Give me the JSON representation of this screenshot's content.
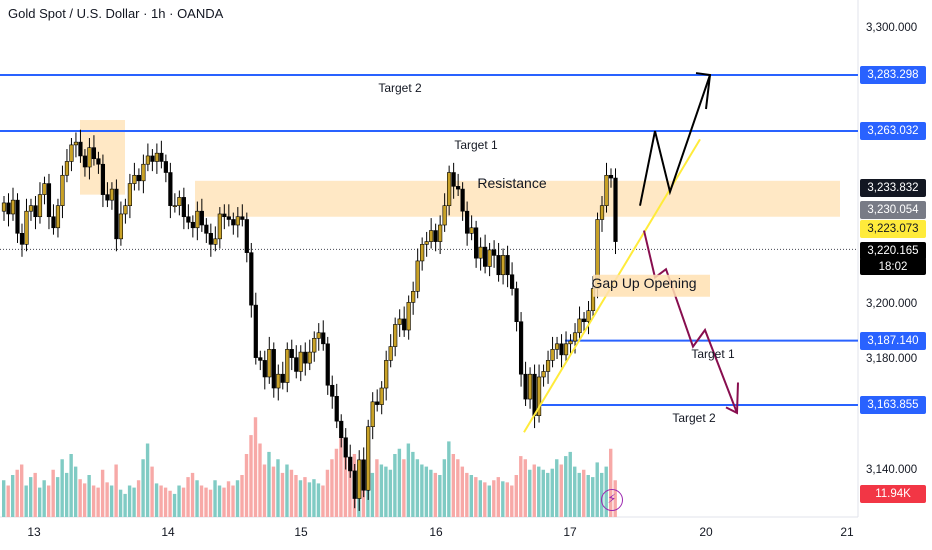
{
  "header": {
    "title": "Gold Spot / U.S. Dollar · 1h · OANDA"
  },
  "colors": {
    "bull": "#089981",
    "bear": "#f23645",
    "bull_vol": "#80cbc4",
    "bear_vol": "#f7a9a7",
    "level_line": "#2962ff",
    "resistance_zone": "#ffe0b2",
    "trend": "#ffeb3b",
    "up_path": "#000000",
    "down_path": "#880e4f"
  },
  "chart_data": {
    "type": "candlestick",
    "title": "Gold Spot / U.S. Dollar · 1h · OANDA",
    "x_ticks": [
      "13",
      "14",
      "15",
      "16",
      "17",
      "20",
      "21"
    ],
    "y_ticks": [
      "3,300.000",
      "3,200.000",
      "3,180.000",
      "3,140.000"
    ],
    "ylim": [
      3128,
      3307
    ],
    "close_series": [
      3237,
      3233,
      3238,
      3226,
      3222,
      3234,
      3236,
      3232,
      3240,
      3244,
      3232,
      3228,
      3236,
      3247,
      3252,
      3258,
      3259,
      3254,
      3250,
      3257,
      3253,
      3251,
      3240,
      3238,
      3242,
      3224,
      3233,
      3236,
      3244,
      3247,
      3245,
      3251,
      3254,
      3252,
      3255,
      3252,
      3248,
      3236,
      3236,
      3239,
      3232,
      3230,
      3228,
      3234,
      3229,
      3226,
      3222,
      3224,
      3233,
      3232,
      3231,
      3229,
      3232,
      3231,
      3219,
      3200,
      3181,
      3180,
      3174,
      3184,
      3170,
      3175,
      3172,
      3184,
      3181,
      3176,
      3183,
      3179,
      3183,
      3188,
      3190,
      3186,
      3171,
      3167,
      3158,
      3152,
      3145,
      3140,
      3130,
      3144,
      3133,
      3156,
      3165,
      3164,
      3170,
      3180,
      3185,
      3193,
      3195,
      3191,
      3201,
      3205,
      3216,
      3222,
      3223,
      3227,
      3223,
      3229,
      3236,
      3248,
      3243,
      3242,
      3234,
      3226,
      3228,
      3217,
      3221,
      3214,
      3220,
      3218,
      3211,
      3218,
      3211,
      3206,
      3194,
      3175,
      3166,
      3175,
      3160,
      3174,
      3176,
      3180,
      3184,
      3186,
      3182,
      3186,
      3187,
      3190,
      3195,
      3194,
      3198,
      3206,
      3231,
      3236,
      3247,
      3246,
      3223
    ],
    "volume_level_fractions": [
      0.35,
      0.3,
      0.4,
      0.45,
      0.5,
      0.3,
      0.38,
      0.42,
      0.28,
      0.35,
      0.3,
      0.45,
      0.38,
      0.55,
      0.42,
      0.6,
      0.48,
      0.36,
      0.32,
      0.4,
      0.3,
      0.28,
      0.45,
      0.33,
      0.3,
      0.5,
      0.26,
      0.22,
      0.3,
      0.28,
      0.35,
      0.55,
      0.7,
      0.48,
      0.32,
      0.3,
      0.28,
      0.25,
      0.22,
      0.3,
      0.28,
      0.38,
      0.42,
      0.35,
      0.3,
      0.28,
      0.26,
      0.35,
      0.3,
      0.28,
      0.34,
      0.3,
      0.35,
      0.4,
      0.6,
      0.78,
      0.95,
      0.7,
      0.5,
      0.62,
      0.48,
      0.55,
      0.42,
      0.5,
      0.45,
      0.4,
      0.35,
      0.38,
      0.33,
      0.36,
      0.32,
      0.3,
      0.45,
      0.55,
      0.65,
      0.75,
      0.68,
      0.55,
      0.6,
      0.5,
      0.55,
      0.48,
      0.42,
      0.55,
      0.5,
      0.48,
      0.45,
      0.6,
      0.65,
      0.55,
      0.7,
      0.62,
      0.55,
      0.5,
      0.48,
      0.45,
      0.42,
      0.4,
      0.55,
      0.72,
      0.6,
      0.55,
      0.48,
      0.42,
      0.4,
      0.38,
      0.35,
      0.33,
      0.3,
      0.35,
      0.38,
      0.34,
      0.33,
      0.3,
      0.4,
      0.58,
      0.55,
      0.45,
      0.5,
      0.48,
      0.45,
      0.42,
      0.46,
      0.55,
      0.5,
      0.58,
      0.62,
      0.48,
      0.42,
      0.45,
      0.4,
      0.38,
      0.52,
      0.42,
      0.48,
      0.65,
      0.35
    ],
    "levels": [
      {
        "label": "3,283.298",
        "value": 3283.298
      },
      {
        "label": "3,263.032",
        "value": 3263.032
      },
      {
        "label": "3,187.140",
        "value": 3187.14
      },
      {
        "label": "3,163.855",
        "value": 3163.855
      }
    ],
    "price_badges": [
      {
        "label": "3,233.832",
        "value": 3233.832
      },
      {
        "label": "3,230.054",
        "value": 3230.054
      },
      {
        "label": "3,223.073",
        "value": 3223.073
      },
      {
        "label": "3,220.165",
        "value": 3220.165,
        "timer": "18:02"
      }
    ],
    "volume_badge": "11.94K",
    "resistance_zone": [
      3232,
      3245
    ],
    "annotations": {
      "target2_top": "Target 2",
      "target1_top": "Target 1",
      "resistance": "Resistance",
      "gap_up": "Gap Up Opening",
      "target1_bottom": "Target 1",
      "target2_bottom": "Target 2"
    }
  }
}
